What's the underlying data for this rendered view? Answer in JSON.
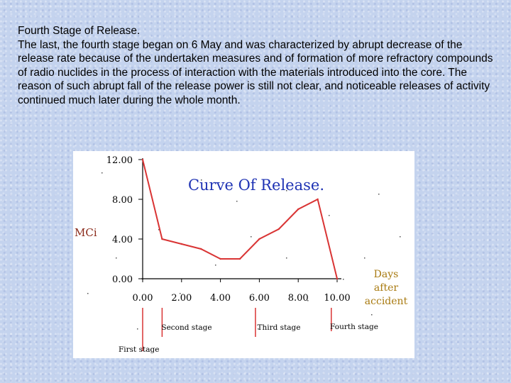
{
  "text": {
    "heading": "Fourth Stage of Release.",
    "paragraph": "The last, the fourth stage began on 6 May and was characterized by abrupt decrease of the release rate because of the undertaken measures and of formation of more refractory compounds of radio nuclides in the process of interaction with the materials introduced into the core. The reason of such abrupt fall of the release power is still not clear, and noticeable releases of activity continued much later during the whole month."
  },
  "colors": {
    "line": "#d93434",
    "title": "#1f33b4",
    "axis": "#000000",
    "ylabel": "#8a2a1a",
    "xlabel": "#a87a10",
    "stage_marker": "#d93434"
  },
  "chart_data": {
    "type": "line",
    "title": "Curve Of Release.",
    "ylabel": "MCi",
    "xlabel": [
      "Days",
      "after",
      "accident"
    ],
    "xlim": [
      0,
      10
    ],
    "ylim": [
      0,
      12
    ],
    "x_ticks": [
      "0.00",
      "2.00",
      "4.00",
      "6.00",
      "8.00",
      "10.00"
    ],
    "y_ticks": [
      "0.00",
      "4.00",
      "8.00",
      "12.00"
    ],
    "x_tick_values": [
      0,
      2,
      4,
      6,
      8,
      10
    ],
    "y_tick_values": [
      0,
      4,
      8,
      12
    ],
    "series": [
      {
        "x": [
          0,
          1,
          2,
          3,
          4,
          5,
          6,
          7,
          8,
          9,
          10
        ],
        "y": [
          12,
          4,
          3.5,
          3,
          2,
          2,
          4,
          5,
          7,
          8,
          0
        ]
      }
    ],
    "stages": [
      {
        "label": "First stage",
        "x": 0
      },
      {
        "label": "Second stage",
        "x": 1
      },
      {
        "label": "Third stage",
        "x": 5.8
      },
      {
        "label": "Fourth stage",
        "x": 9.7
      }
    ]
  }
}
